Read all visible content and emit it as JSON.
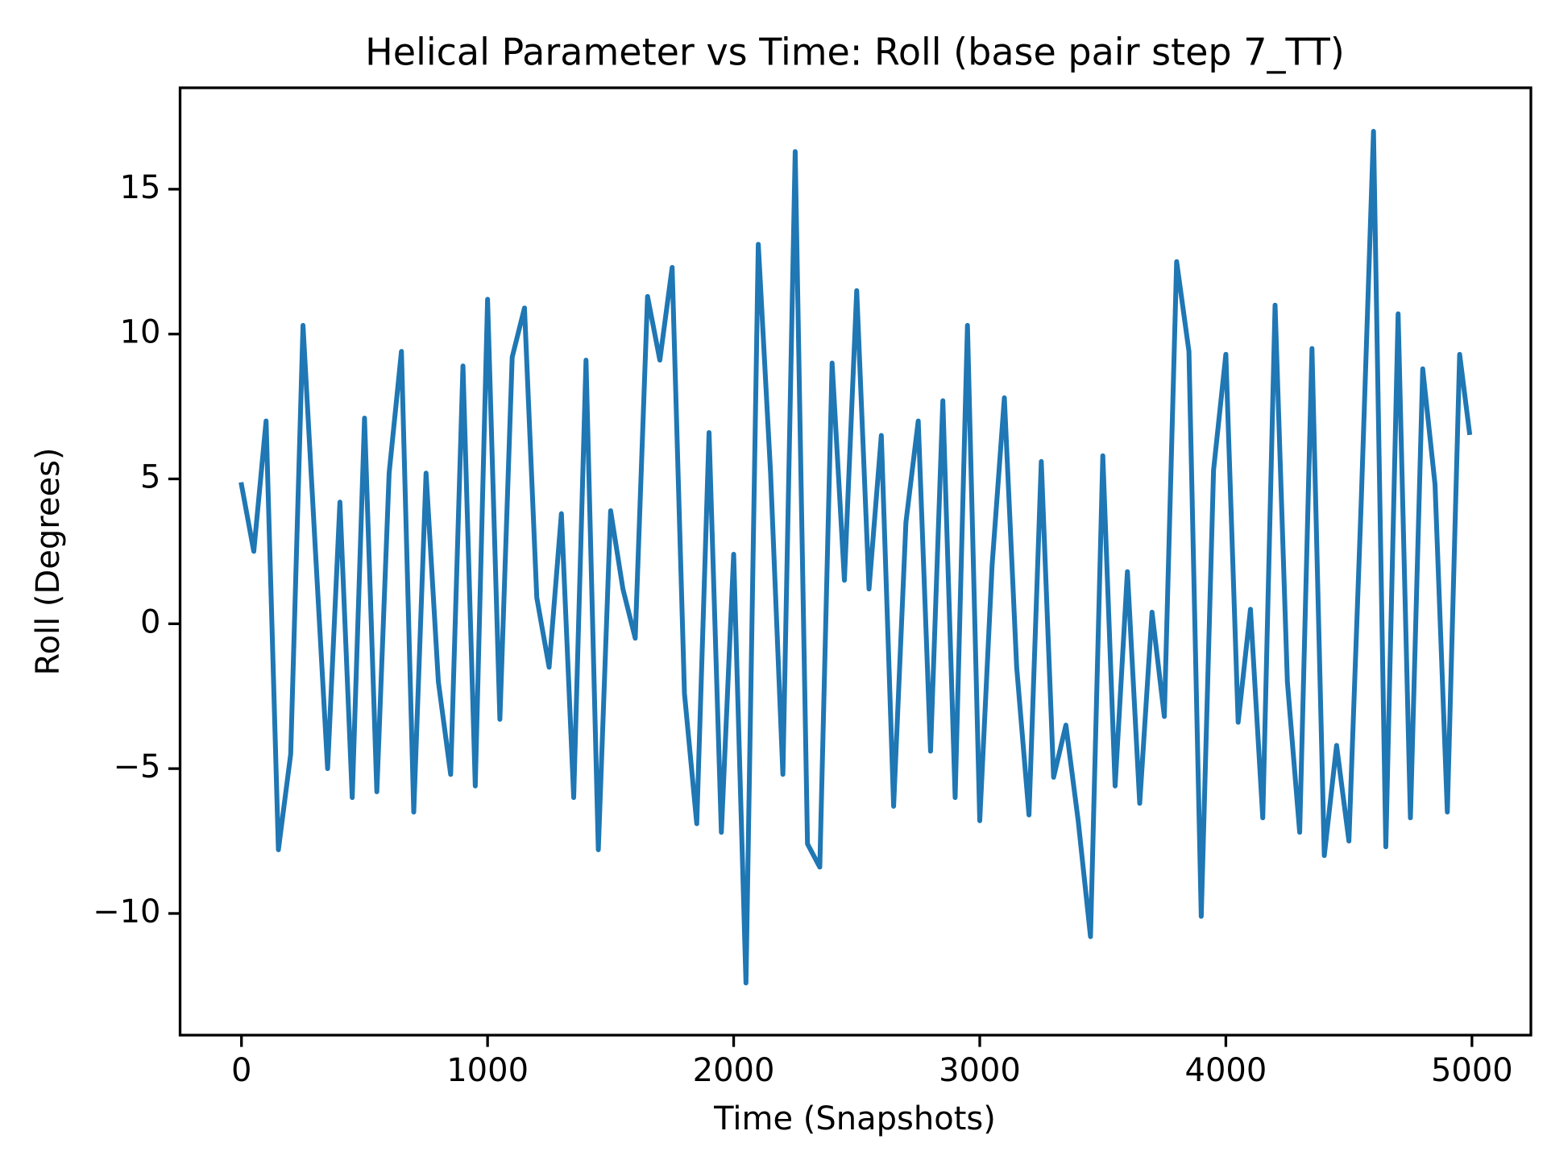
{
  "chart_data": {
    "type": "line",
    "title": "Helical Parameter vs Time: Roll (base pair step 7_TT)",
    "x_label": "Time (Snapshots)",
    "y_label": "Roll (Degrees)",
    "color": "#1f77b4",
    "x": [
      0,
      50,
      100,
      150,
      200,
      250,
      300,
      350,
      400,
      450,
      500,
      550,
      600,
      650,
      700,
      750,
      800,
      850,
      900,
      950,
      1000,
      1050,
      1100,
      1150,
      1200,
      1250,
      1300,
      1350,
      1400,
      1450,
      1500,
      1550,
      1600,
      1650,
      1700,
      1750,
      1800,
      1850,
      1900,
      1950,
      2000,
      2050,
      2100,
      2150,
      2200,
      2250,
      2300,
      2350,
      2400,
      2450,
      2500,
      2550,
      2600,
      2650,
      2700,
      2750,
      2800,
      2850,
      2900,
      2950,
      3000,
      3050,
      3100,
      3150,
      3200,
      3250,
      3300,
      3350,
      3400,
      3450,
      3500,
      3550,
      3600,
      3650,
      3700,
      3750,
      3800,
      3850,
      3900,
      3950,
      4000,
      4050,
      4100,
      4150,
      4200,
      4250,
      4300,
      4350,
      4400,
      4450,
      4500,
      4550,
      4600,
      4650,
      4700,
      4750,
      4800,
      4850,
      4900,
      4950,
      4990
    ],
    "values": [
      4.8,
      2.5,
      7.0,
      -7.8,
      -4.5,
      10.3,
      2.6,
      -5.0,
      4.2,
      -6.0,
      7.1,
      -5.8,
      5.2,
      9.4,
      -6.5,
      5.2,
      -2.0,
      -5.2,
      8.9,
      -5.6,
      11.2,
      -3.3,
      9.2,
      10.9,
      0.9,
      -1.5,
      3.8,
      -6.0,
      9.1,
      -7.8,
      3.9,
      1.2,
      -0.5,
      11.3,
      9.1,
      12.3,
      -2.4,
      -6.9,
      6.6,
      -7.2,
      2.4,
      -12.4,
      13.1,
      5.2,
      -5.2,
      16.3,
      -7.6,
      -8.4,
      9.0,
      1.5,
      11.5,
      1.2,
      6.5,
      -6.3,
      3.5,
      7.0,
      -4.4,
      7.7,
      -6.0,
      10.3,
      -6.8,
      2.0,
      7.8,
      -1.5,
      -6.6,
      5.6,
      -5.3,
      -3.5,
      -6.8,
      -10.8,
      5.8,
      -5.6,
      1.8,
      -6.2,
      0.4,
      -3.2,
      12.5,
      9.4,
      -10.1,
      5.3,
      9.3,
      -3.4,
      0.5,
      -6.7,
      11.0,
      -2.0,
      -7.2,
      9.5,
      -8.0,
      -4.2,
      -7.5,
      4.2,
      17.0,
      -7.7,
      10.7,
      -6.7,
      8.8,
      4.8,
      -6.5,
      9.3,
      6.6
    ],
    "xlim": [
      -249.5,
      5239.5
    ],
    "ylim": [
      -14.2,
      18.5
    ],
    "xticks": [
      0,
      1000,
      2000,
      3000,
      4000,
      5000
    ],
    "yticks": [
      {
        "value": -10,
        "label": "−10"
      },
      {
        "value": -5,
        "label": "−5"
      },
      0,
      5,
      10,
      15
    ]
  }
}
